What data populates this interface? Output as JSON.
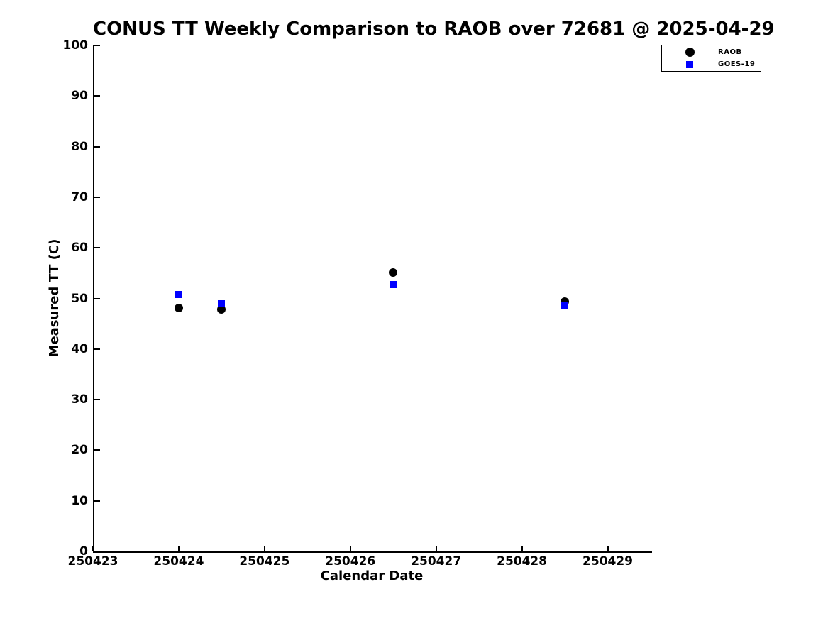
{
  "chart_data": {
    "type": "scatter",
    "title": "CONUS TT Weekly Comparison to RAOB over 72681 @ 2025-04-29",
    "xlabel": "Calendar Date",
    "ylabel": "Measured TT (C)",
    "xlim": [
      250423,
      250429.5
    ],
    "ylim": [
      0,
      100
    ],
    "xticks": [
      250423,
      250424,
      250425,
      250426,
      250427,
      250428,
      250429
    ],
    "yticks": [
      0,
      10,
      20,
      30,
      40,
      50,
      60,
      70,
      80,
      90,
      100
    ],
    "grid": false,
    "legend_position": "top-right-outside",
    "colors": {
      "raob": "#000000",
      "goes19": "#0000ff",
      "axis": "#000000"
    },
    "series": [
      {
        "name": "RAOB",
        "marker": "circle",
        "color": "#000000",
        "points": [
          [
            250424.0,
            48.1
          ],
          [
            250424.5,
            47.8
          ],
          [
            250426.5,
            55.1
          ],
          [
            250428.5,
            49.4
          ]
        ]
      },
      {
        "name": "GOES-19",
        "marker": "square",
        "color": "#0000ff",
        "points": [
          [
            250424.0,
            50.8
          ],
          [
            250424.5,
            48.9
          ],
          [
            250426.5,
            52.7
          ],
          [
            250428.5,
            48.7
          ]
        ]
      }
    ]
  }
}
